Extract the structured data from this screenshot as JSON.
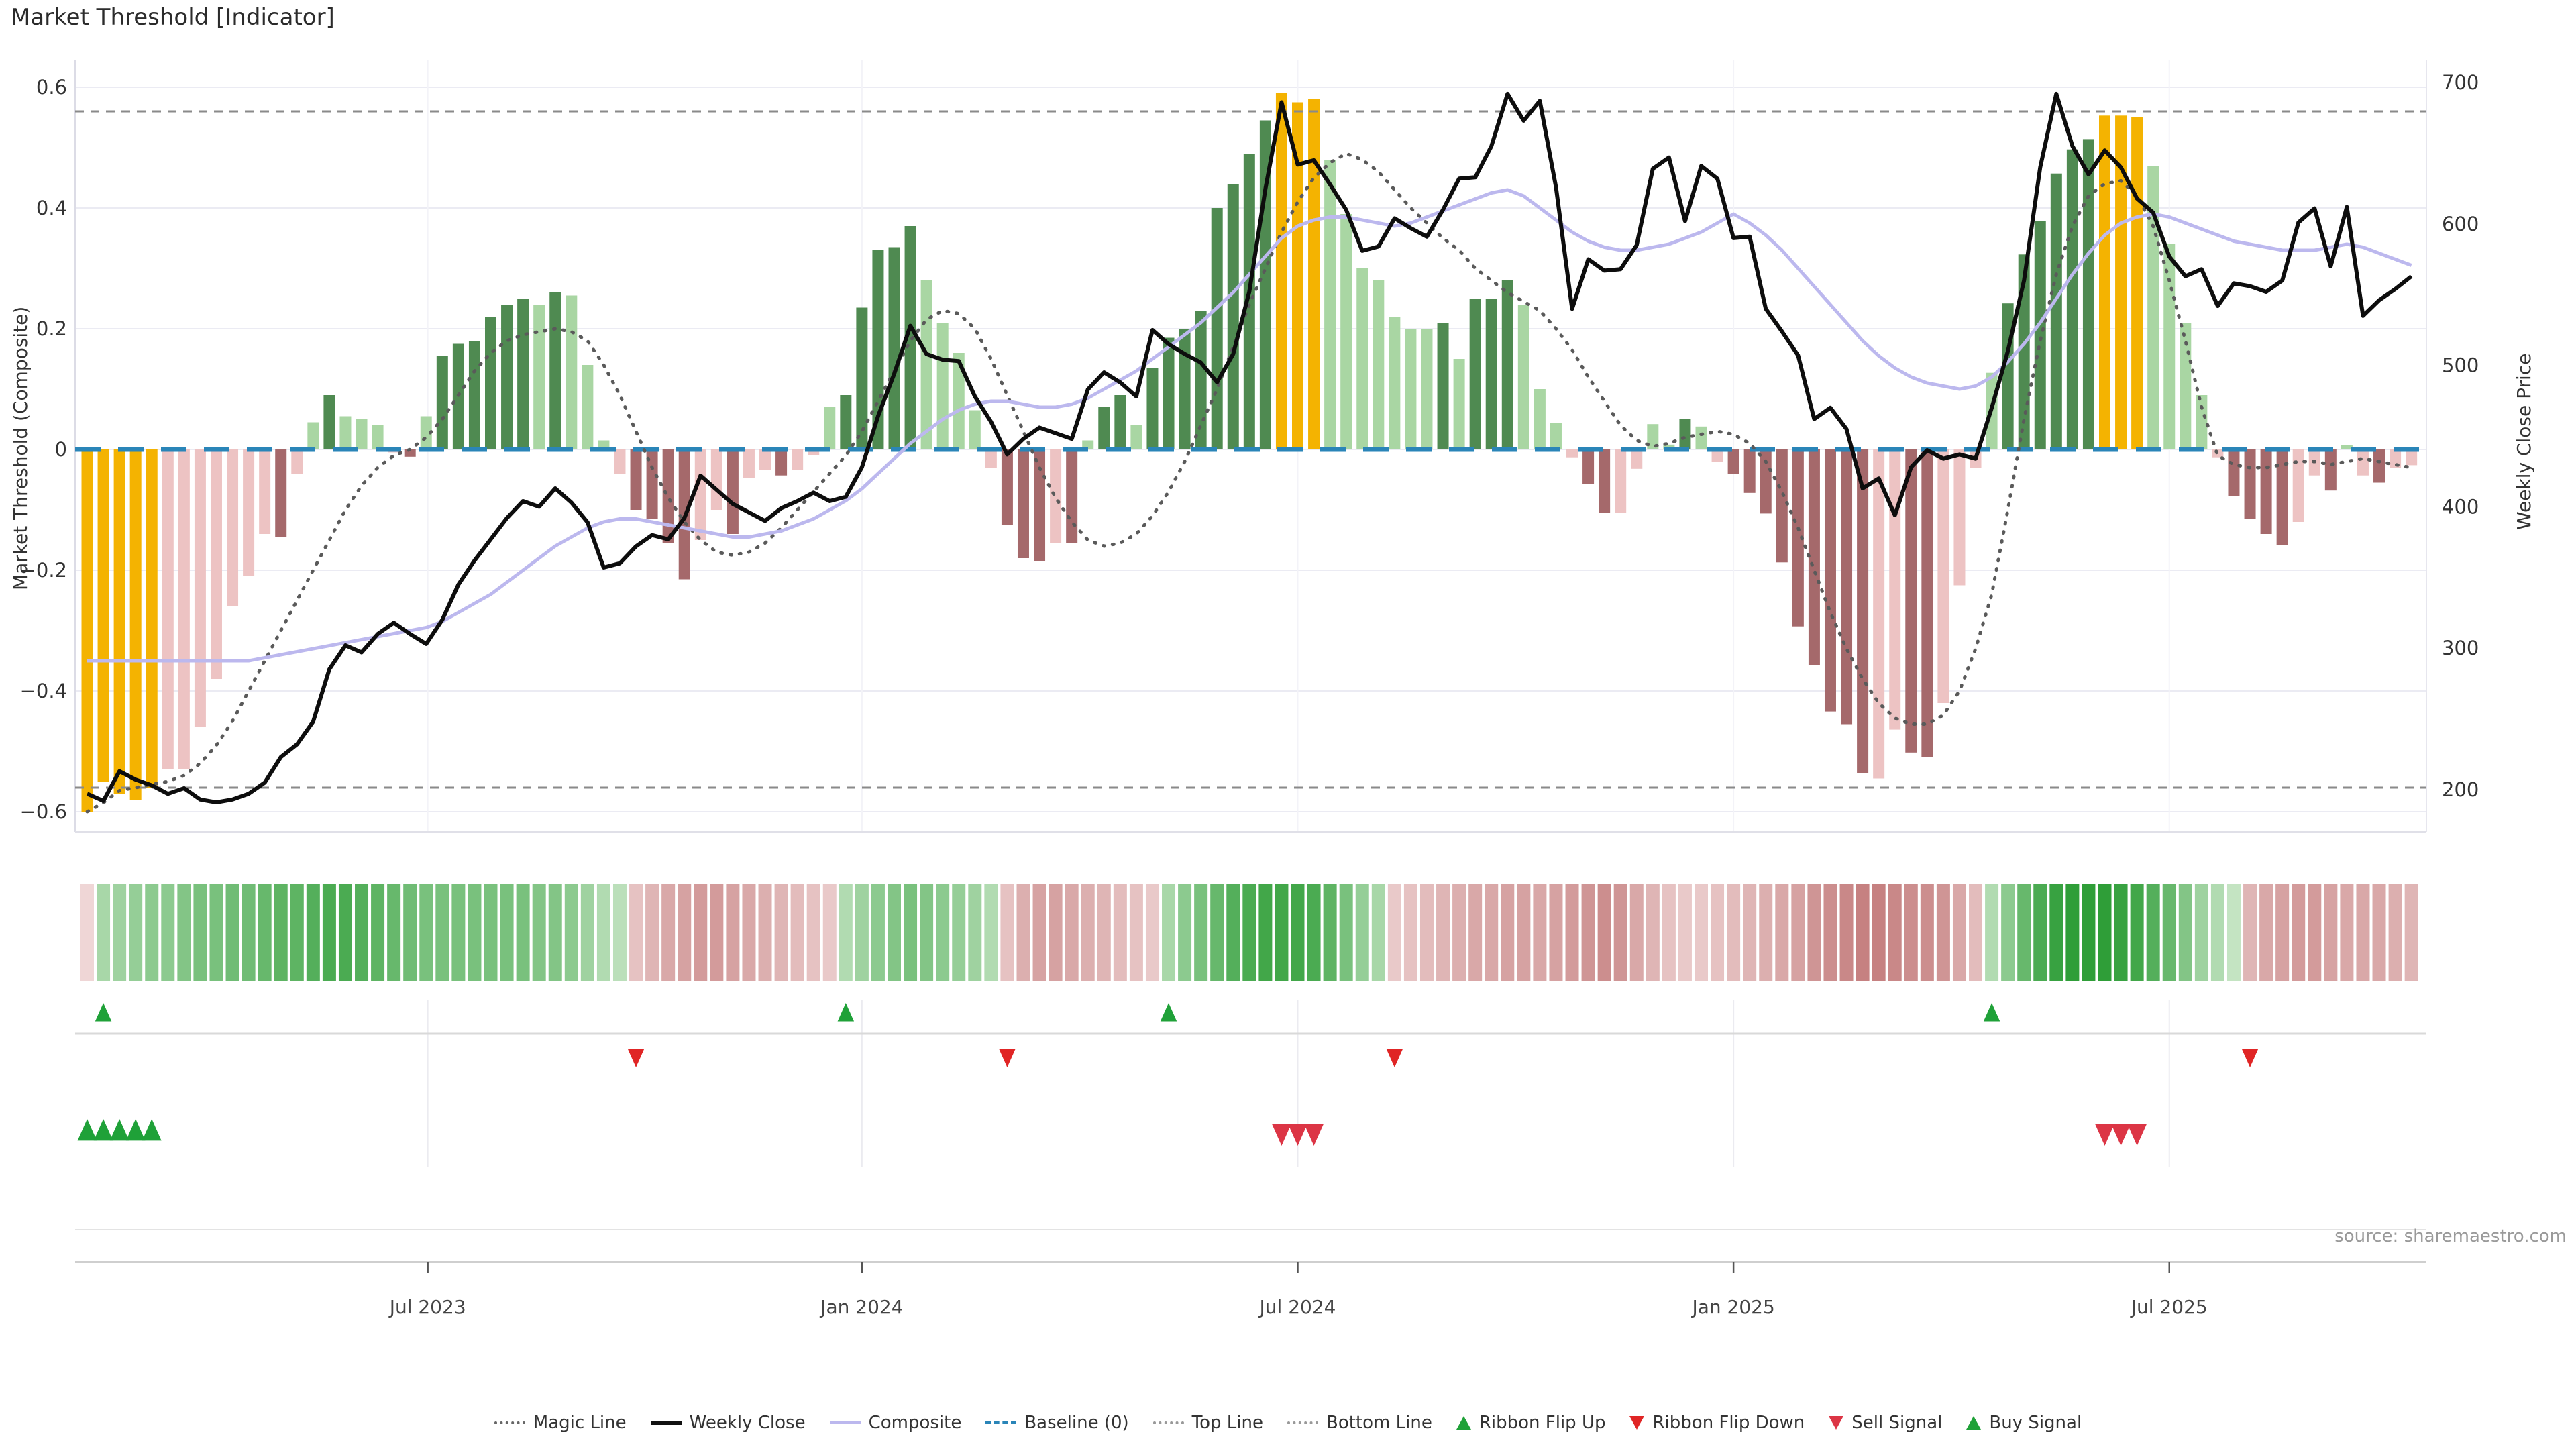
{
  "title": "Market Threshold [Indicator]",
  "source": "source: sharemaestro.com",
  "axes": {
    "left": {
      "title": "Market Threshold (Composite)",
      "tick_labels": [
        "0.6",
        "0.4",
        "0.2",
        "0",
        "−0.2",
        "−0.4",
        "−0.6"
      ],
      "tick_values": [
        0.6,
        0.4,
        0.2,
        0,
        -0.2,
        -0.4,
        -0.6
      ]
    },
    "right": {
      "title": "Weekly Close Price",
      "tick_labels": [
        "700",
        "600",
        "500",
        "400",
        "300",
        "200"
      ],
      "tick_values": [
        700,
        600,
        500,
        400,
        300,
        200
      ]
    },
    "x": {
      "labels": [
        "Jul 2023",
        "Jan 2024",
        "Jul 2024",
        "Jan 2025",
        "Jul 2025"
      ],
      "week_positions": [
        21.1,
        48,
        75,
        102,
        129
      ]
    }
  },
  "colors": {
    "yellow": "#F4B301",
    "green_dark": "#4F8A51",
    "green_light": "#A9D6A3",
    "red_dark": "#A5696B",
    "red_light": "#EDC3C3",
    "weekly_close": "#0d0d0d",
    "composite": "#bcb8ee",
    "magic": "#5a5a5a",
    "baseline": "#2a85b8",
    "ref_line": "#8a8a8a",
    "grid": "#ebebf3",
    "flip_up": "#1fa138",
    "flip_down": "#e02525",
    "sell": "#dc3545",
    "buy": "#1fa138"
  },
  "legend": {
    "items": [
      {
        "label": "Magic Line",
        "type": "dotted",
        "color": "#666666"
      },
      {
        "label": "Weekly Close",
        "type": "solid-thick",
        "color": "#111111"
      },
      {
        "label": "Composite",
        "type": "solid",
        "color": "#bcb8ee"
      },
      {
        "label": "Baseline (0)",
        "type": "dashed",
        "color": "#2a85b8"
      },
      {
        "label": "Top Line",
        "type": "dotted",
        "color": "#999999"
      },
      {
        "label": "Bottom Line",
        "type": "dotted",
        "color": "#999999"
      },
      {
        "label": "Ribbon Flip Up",
        "type": "tri-up",
        "color": "#1fa138"
      },
      {
        "label": "Ribbon Flip Down",
        "type": "tri-down",
        "color": "#e02525"
      },
      {
        "label": "Sell Signal",
        "type": "tri-down",
        "color": "#dc3545"
      },
      {
        "label": "Buy Signal",
        "type": "tri-up",
        "color": "#1fa138"
      }
    ]
  },
  "chart_data": {
    "type": "bar+line",
    "x_unit": "week",
    "n_points": 145,
    "ylim_left": [
      -0.65,
      0.65
    ],
    "ylim_right": [
      180,
      710
    ],
    "reference_lines": {
      "top_line": 0.56,
      "baseline": 0,
      "bottom_line": -0.56
    },
    "bars": {
      "name": "Market Threshold",
      "values": [
        -0.6,
        -0.55,
        -0.57,
        -0.58,
        -0.56,
        -0.53,
        -0.53,
        -0.46,
        -0.38,
        -0.26,
        -0.21,
        -0.14,
        -0.145,
        -0.04,
        0.045,
        0.09,
        0.055,
        0.05,
        0.04,
        -0.005,
        -0.012,
        0.055,
        0.155,
        0.175,
        0.18,
        0.22,
        0.24,
        0.25,
        0.24,
        0.26,
        0.255,
        0.14,
        0.015,
        -0.04,
        -0.1,
        -0.115,
        -0.155,
        -0.215,
        -0.15,
        -0.1,
        -0.14,
        -0.047,
        -0.034,
        -0.043,
        -0.034,
        -0.01,
        0.07,
        0.09,
        0.235,
        0.33,
        0.335,
        0.37,
        0.28,
        0.21,
        0.16,
        0.065,
        -0.03,
        -0.125,
        -0.18,
        -0.185,
        -0.155,
        -0.155,
        0.015,
        0.07,
        0.09,
        0.04,
        0.135,
        0.185,
        0.2,
        0.23,
        0.4,
        0.44,
        0.49,
        0.545,
        0.59,
        0.575,
        0.58,
        0.48,
        0.39,
        0.3,
        0.28,
        0.22,
        0.2,
        0.2,
        0.21,
        0.15,
        0.25,
        0.25,
        0.28,
        0.24,
        0.1,
        0.044,
        -0.013,
        -0.057,
        -0.105,
        -0.105,
        -0.032,
        0.042,
        0.008,
        0.051,
        0.038,
        -0.02,
        -0.04,
        -0.072,
        -0.106,
        -0.187,
        -0.293,
        -0.357,
        -0.434,
        -0.455,
        -0.536,
        -0.545,
        -0.464,
        -0.502,
        -0.51,
        -0.42,
        -0.225,
        -0.03,
        0.127,
        0.242,
        0.323,
        0.378,
        0.457,
        0.497,
        0.514,
        0.553,
        0.553,
        0.55,
        0.47,
        0.34,
        0.21,
        0.09,
        -0.013,
        -0.077,
        -0.115,
        -0.14,
        -0.158,
        -0.12,
        -0.043,
        -0.068,
        0.007,
        -0.043,
        -0.055,
        -0.03,
        -0.026
      ],
      "classes": "y y y y y lr lr lr lr lr lr lr r lr lg g lg lg lg lr r lg g g g g g g lg g lg lg lg lr r r r r lr lr r lr lr r lr lr lg g g g g g lg lg lg lg lr r r r lr r lg g g lg g g g g g g g g y y y lg lg lg lg lg lg lg g lg g g g lg lg lg lr r r lr lr lg lg g lg lr r r r r r r r r r lr lr r r lr lr lr lg g g g g g g y y y lg lg lg lg lr r r r r lr lr r lg lr r lr lr"
    },
    "lines": [
      {
        "name": "Weekly Close",
        "axis": "right",
        "values": [
          197,
          192,
          213,
          207,
          203,
          197,
          201,
          193,
          191,
          193,
          197,
          205,
          223,
          232,
          248,
          285,
          302,
          297,
          310,
          318,
          310,
          303,
          320,
          345,
          362,
          377,
          392,
          404,
          400,
          413,
          403,
          389,
          357,
          360,
          372,
          380,
          377,
          392,
          422,
          412,
          402,
          396,
          390,
          399,
          404,
          410,
          404,
          407,
          428,
          464,
          494,
          528,
          508,
          504,
          503,
          478,
          460,
          437,
          448,
          456,
          452,
          448,
          483,
          495,
          488,
          478,
          525,
          515,
          508,
          502,
          488,
          508,
          552,
          625,
          686,
          642,
          645,
          628,
          610,
          581,
          584,
          604,
          597,
          591,
          610,
          632,
          633,
          655,
          692,
          673,
          687,
          626,
          540,
          575,
          567,
          568,
          585,
          639,
          647,
          602,
          641,
          632,
          590,
          591,
          540,
          524,
          507,
          462,
          470,
          455,
          413,
          420,
          394,
          428,
          440,
          434,
          437,
          434,
          470,
          510,
          560,
          640,
          692,
          655,
          635,
          652,
          640,
          618,
          608,
          577,
          563,
          568,
          542,
          558,
          556,
          552,
          560,
          601,
          611,
          570,
          612,
          535,
          546,
          554,
          563
        ]
      },
      {
        "name": "Composite",
        "axis": "left",
        "values": [
          -0.35,
          -0.35,
          -0.35,
          -0.35,
          -0.35,
          -0.35,
          -0.35,
          -0.35,
          -0.35,
          -0.35,
          -0.35,
          -0.345,
          -0.34,
          -0.335,
          -0.33,
          -0.325,
          -0.32,
          -0.315,
          -0.31,
          -0.305,
          -0.3,
          -0.295,
          -0.285,
          -0.27,
          -0.255,
          -0.24,
          -0.22,
          -0.2,
          -0.18,
          -0.16,
          -0.145,
          -0.13,
          -0.12,
          -0.115,
          -0.115,
          -0.12,
          -0.125,
          -0.13,
          -0.135,
          -0.14,
          -0.145,
          -0.145,
          -0.14,
          -0.135,
          -0.125,
          -0.115,
          -0.1,
          -0.085,
          -0.065,
          -0.04,
          -0.015,
          0.01,
          0.03,
          0.05,
          0.065,
          0.075,
          0.08,
          0.08,
          0.075,
          0.07,
          0.07,
          0.075,
          0.085,
          0.1,
          0.115,
          0.13,
          0.15,
          0.17,
          0.19,
          0.21,
          0.235,
          0.26,
          0.29,
          0.32,
          0.35,
          0.37,
          0.38,
          0.385,
          0.385,
          0.38,
          0.375,
          0.37,
          0.375,
          0.385,
          0.395,
          0.405,
          0.415,
          0.425,
          0.43,
          0.42,
          0.4,
          0.38,
          0.36,
          0.345,
          0.335,
          0.33,
          0.33,
          0.335,
          0.34,
          0.35,
          0.36,
          0.375,
          0.39,
          0.375,
          0.355,
          0.33,
          0.3,
          0.27,
          0.24,
          0.21,
          0.18,
          0.155,
          0.135,
          0.12,
          0.11,
          0.105,
          0.1,
          0.105,
          0.12,
          0.145,
          0.175,
          0.21,
          0.25,
          0.29,
          0.325,
          0.355,
          0.375,
          0.385,
          0.39,
          0.385,
          0.375,
          0.365,
          0.355,
          0.345,
          0.34,
          0.335,
          0.33,
          0.33,
          0.33,
          0.335,
          0.34,
          0.335,
          0.325,
          0.315,
          0.305
        ]
      },
      {
        "name": "Magic Line",
        "axis": "left",
        "values": [
          -0.6,
          -0.585,
          -0.565,
          -0.56,
          -0.555,
          -0.55,
          -0.54,
          -0.52,
          -0.49,
          -0.45,
          -0.4,
          -0.35,
          -0.3,
          -0.25,
          -0.2,
          -0.15,
          -0.1,
          -0.06,
          -0.03,
          -0.01,
          0.0,
          0.02,
          0.05,
          0.09,
          0.13,
          0.16,
          0.18,
          0.19,
          0.195,
          0.2,
          0.195,
          0.18,
          0.14,
          0.09,
          0.03,
          -0.03,
          -0.08,
          -0.12,
          -0.15,
          -0.17,
          -0.175,
          -0.17,
          -0.155,
          -0.13,
          -0.1,
          -0.07,
          -0.04,
          -0.01,
          0.03,
          0.08,
          0.13,
          0.18,
          0.215,
          0.23,
          0.225,
          0.2,
          0.15,
          0.09,
          0.03,
          -0.03,
          -0.08,
          -0.12,
          -0.15,
          -0.16,
          -0.155,
          -0.14,
          -0.11,
          -0.07,
          -0.02,
          0.04,
          0.1,
          0.17,
          0.24,
          0.3,
          0.36,
          0.41,
          0.45,
          0.475,
          0.49,
          0.48,
          0.46,
          0.43,
          0.4,
          0.375,
          0.35,
          0.33,
          0.3,
          0.28,
          0.26,
          0.245,
          0.23,
          0.2,
          0.165,
          0.12,
          0.08,
          0.04,
          0.015,
          0.005,
          0.01,
          0.02,
          0.025,
          0.03,
          0.025,
          0.01,
          -0.02,
          -0.07,
          -0.13,
          -0.2,
          -0.27,
          -0.33,
          -0.38,
          -0.42,
          -0.445,
          -0.455,
          -0.455,
          -0.44,
          -0.4,
          -0.33,
          -0.24,
          -0.1,
          0.05,
          0.18,
          0.29,
          0.37,
          0.42,
          0.44,
          0.445,
          0.42,
          0.37,
          0.28,
          0.18,
          0.07,
          -0.01,
          -0.025,
          -0.03,
          -0.03,
          -0.025,
          -0.02,
          -0.02,
          -0.025,
          -0.02,
          -0.015,
          -0.02,
          -0.025,
          -0.03
        ]
      }
    ],
    "ribbon": [
      -0.15,
      0.35,
      0.4,
      0.45,
      0.5,
      0.5,
      0.55,
      0.6,
      0.6,
      0.65,
      0.65,
      0.7,
      0.75,
      0.75,
      0.8,
      0.85,
      0.85,
      0.8,
      0.75,
      0.7,
      0.65,
      0.6,
      0.6,
      0.6,
      0.6,
      0.6,
      0.6,
      0.6,
      0.55,
      0.55,
      0.5,
      0.4,
      0.3,
      0.25,
      -0.3,
      -0.4,
      -0.5,
      -0.55,
      -0.6,
      -0.6,
      -0.55,
      -0.5,
      -0.45,
      -0.4,
      -0.35,
      -0.3,
      -0.25,
      0.3,
      0.4,
      0.5,
      0.55,
      0.6,
      0.55,
      0.5,
      0.45,
      0.4,
      0.3,
      -0.3,
      -0.45,
      -0.55,
      -0.55,
      -0.5,
      -0.45,
      -0.4,
      -0.35,
      -0.3,
      -0.25,
      0.35,
      0.5,
      0.6,
      0.7,
      0.8,
      0.85,
      0.9,
      0.9,
      0.9,
      0.85,
      0.75,
      0.6,
      0.45,
      0.35,
      -0.25,
      -0.3,
      -0.35,
      -0.4,
      -0.45,
      -0.5,
      -0.5,
      -0.55,
      -0.55,
      -0.5,
      -0.55,
      -0.6,
      -0.65,
      -0.7,
      -0.65,
      -0.5,
      -0.4,
      -0.3,
      -0.25,
      -0.25,
      -0.3,
      -0.35,
      -0.4,
      -0.45,
      -0.5,
      -0.55,
      -0.65,
      -0.7,
      -0.75,
      -0.8,
      -0.8,
      -0.75,
      -0.7,
      -0.7,
      -0.65,
      -0.5,
      -0.35,
      0.3,
      0.5,
      0.7,
      0.85,
      0.95,
      1.0,
      1.0,
      1.0,
      0.95,
      0.9,
      0.8,
      0.7,
      0.55,
      0.4,
      0.3,
      0.2,
      -0.4,
      -0.5,
      -0.55,
      -0.6,
      -0.6,
      -0.55,
      -0.5,
      -0.5,
      -0.5,
      -0.45,
      -0.4
    ],
    "signals": {
      "ribbon_flip_up_weeks": [
        1,
        47,
        67,
        118
      ],
      "ribbon_flip_down_weeks": [
        34,
        57,
        81,
        134
      ],
      "buy_signal_weeks": [
        0,
        1,
        2,
        3,
        4
      ],
      "sell_signal_weeks": [
        74,
        75,
        76,
        125,
        126,
        127
      ]
    }
  }
}
